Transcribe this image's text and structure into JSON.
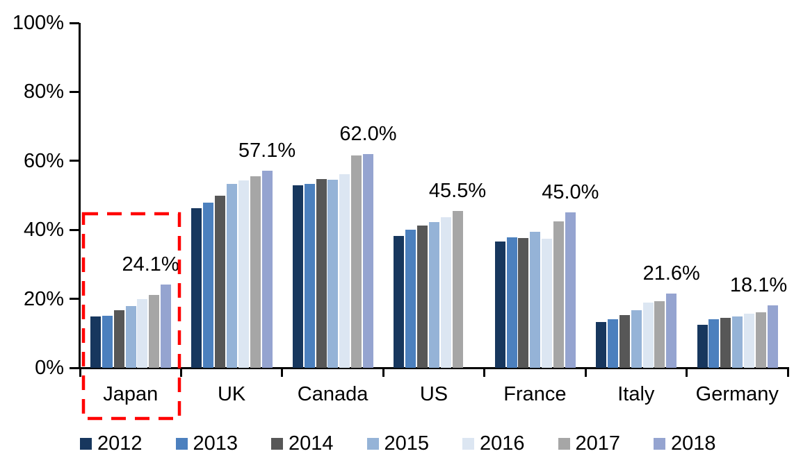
{
  "chart_data": {
    "type": "bar",
    "title": "",
    "categories": [
      "Japan",
      "UK",
      "Canada",
      "US",
      "France",
      "Italy",
      "Germany"
    ],
    "series": [
      {
        "name": "2012",
        "color": "#17375E",
        "values": [
          14.8,
          46.3,
          53.0,
          38.2,
          36.6,
          13.3,
          12.5
        ]
      },
      {
        "name": "2013",
        "color": "#4C80BE",
        "values": [
          15.0,
          47.8,
          53.3,
          40.0,
          37.8,
          14.0,
          14.1
        ]
      },
      {
        "name": "2014",
        "color": "#575757",
        "values": [
          16.6,
          49.8,
          54.8,
          41.2,
          37.7,
          15.2,
          14.4
        ]
      },
      {
        "name": "2015",
        "color": "#95B3D7",
        "values": [
          18.0,
          53.3,
          54.5,
          42.2,
          39.5,
          16.7,
          14.9
        ]
      },
      {
        "name": "2016",
        "color": "#DCE6F2",
        "values": [
          20.0,
          54.4,
          56.1,
          43.7,
          37.5,
          19.0,
          15.6
        ]
      },
      {
        "name": "2017",
        "color": "#A6A6A6",
        "values": [
          21.1,
          55.5,
          61.6,
          45.5,
          42.4,
          19.3,
          16.1
        ]
      },
      {
        "name": "2018",
        "color": "#95A4D0",
        "values": [
          24.1,
          57.1,
          62.0,
          null,
          45.0,
          21.6,
          18.1
        ]
      }
    ],
    "annotations": [
      {
        "category": "Japan",
        "text": "24.1%"
      },
      {
        "category": "UK",
        "text": "57.1%"
      },
      {
        "category": "Canada",
        "text": "62.0%"
      },
      {
        "category": "US",
        "text": "45.5%"
      },
      {
        "category": "France",
        "text": "45.0%"
      },
      {
        "category": "Italy",
        "text": "21.6%"
      },
      {
        "category": "Germany",
        "text": "18.1%"
      }
    ],
    "y_axis": {
      "min": 0,
      "max": 100,
      "tick_labels": [
        "0%",
        "20%",
        "40%",
        "60%",
        "80%",
        "100%"
      ]
    },
    "xlabel": "",
    "ylabel": "",
    "grid": false,
    "legend": [
      "2012",
      "2013",
      "2014",
      "2015",
      "2016",
      "2017",
      "2018"
    ],
    "legend_position": "bottom",
    "highlight": {
      "category": "Japan",
      "style": "dashed-box",
      "color": "#FF0000"
    }
  }
}
